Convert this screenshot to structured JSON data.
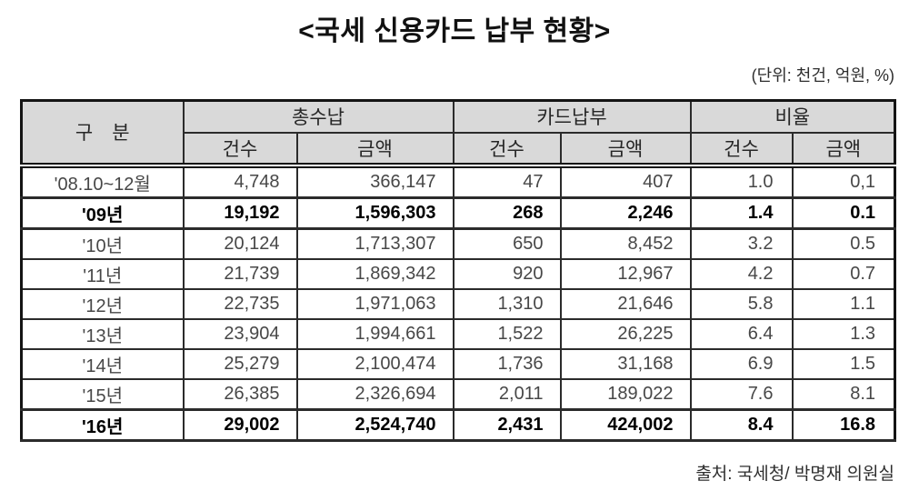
{
  "title": "<국세 신용카드 납부 현황>",
  "unit_note": "(단위: 천건, 억원, %)",
  "source": "출처: 국세청/ 박명재 의원실",
  "table": {
    "corner_label": "구　분",
    "groups": [
      {
        "label": "총수납",
        "children": [
          "건수",
          "금액"
        ]
      },
      {
        "label": "카드납부",
        "children": [
          "건수",
          "금액"
        ]
      },
      {
        "label": "비율",
        "children": [
          "건수",
          "금액"
        ]
      }
    ],
    "rows": [
      {
        "label": "'08.10~12월",
        "bold": false,
        "values": [
          "4,748",
          "366,147",
          "47",
          "407",
          "1.0",
          "0,1"
        ]
      },
      {
        "label": "'09년",
        "bold": true,
        "values": [
          "19,192",
          "1,596,303",
          "268",
          "2,246",
          "1.4",
          "0.1"
        ]
      },
      {
        "label": "'10년",
        "bold": false,
        "values": [
          "20,124",
          "1,713,307",
          "650",
          "8,452",
          "3.2",
          "0.5"
        ]
      },
      {
        "label": "'11년",
        "bold": false,
        "values": [
          "21,739",
          "1,869,342",
          "920",
          "12,967",
          "4.2",
          "0.7"
        ]
      },
      {
        "label": "'12년",
        "bold": false,
        "values": [
          "22,735",
          "1,971,063",
          "1,310",
          "21,646",
          "5.8",
          "1.1"
        ]
      },
      {
        "label": "'13년",
        "bold": false,
        "values": [
          "23,904",
          "1,994,661",
          "1,522",
          "26,225",
          "6.4",
          "1.3"
        ]
      },
      {
        "label": "'14년",
        "bold": false,
        "values": [
          "25,279",
          "2,100,474",
          "1,736",
          "31,168",
          "6.9",
          "1.5"
        ]
      },
      {
        "label": "'15년",
        "bold": false,
        "values": [
          "26,385",
          "2,326,694",
          "2,011",
          "189,022",
          "7.6",
          "8.1"
        ]
      },
      {
        "label": "'16년",
        "bold": true,
        "values": [
          "29,002",
          "2,524,740",
          "2,431",
          "424,002",
          "8.4",
          "16.8"
        ]
      }
    ]
  }
}
